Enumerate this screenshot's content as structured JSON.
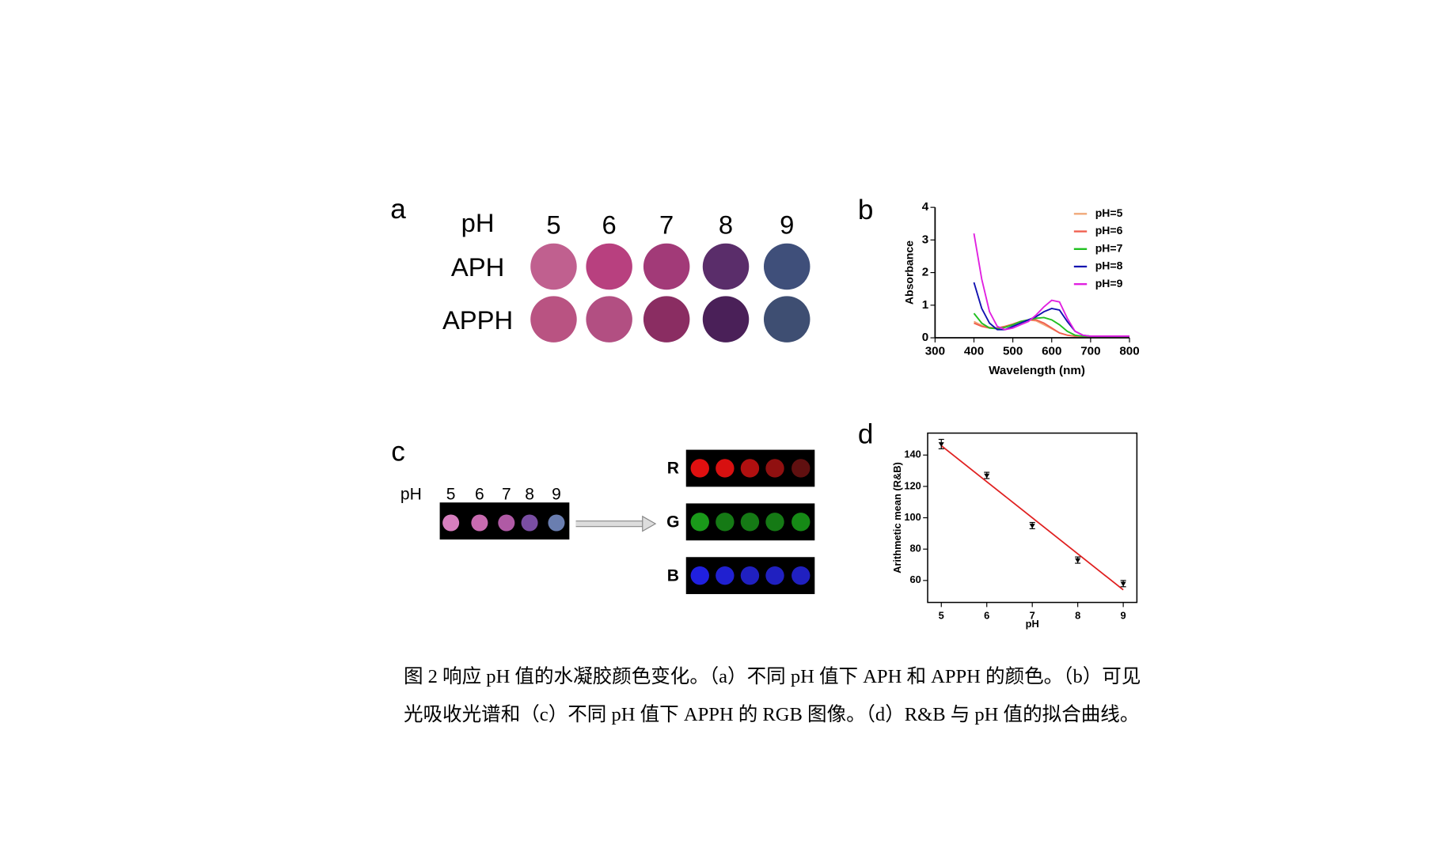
{
  "panel_a": {
    "label": "a",
    "ph_label": "pH",
    "ph_values": [
      "5",
      "6",
      "7",
      "8",
      "9"
    ],
    "rows": [
      {
        "name": "APH",
        "colors": [
          "#c0608f",
          "#b8407f",
          "#a23a78",
          "#5a2d6a",
          "#3f4f7a"
        ]
      },
      {
        "name": "APPH",
        "colors": [
          "#b95382",
          "#b24f82",
          "#8a2d62",
          "#4a2058",
          "#3e4e72"
        ]
      }
    ]
  },
  "panel_c": {
    "label": "c",
    "ph_label": "pH",
    "ph_values": [
      "5",
      "6",
      "7",
      "8",
      "9"
    ],
    "strip_colors": [
      "#d77fbf",
      "#c86bb0",
      "#b05aa5",
      "#7a4ea3",
      "#6a7eb0"
    ],
    "channels": [
      {
        "name": "R",
        "colors": [
          "#e01010",
          "#d81010",
          "#b01010",
          "#901010",
          "#601010"
        ]
      },
      {
        "name": "G",
        "colors": [
          "#1a9a1a",
          "#157a15",
          "#157a15",
          "#157a15",
          "#168a16"
        ]
      },
      {
        "name": "B",
        "colors": [
          "#2020e0",
          "#2020d0",
          "#2020c0",
          "#2020c0",
          "#2020c0"
        ]
      }
    ]
  },
  "chart_data": [
    {
      "type": "line",
      "label": "b",
      "x_label": "Wavelength (nm)",
      "y_label": "Absorbance",
      "x": [
        400,
        420,
        440,
        460,
        480,
        500,
        520,
        540,
        560,
        580,
        600,
        620,
        640,
        660,
        680,
        700,
        720,
        740,
        760,
        780,
        800
      ],
      "xlim": [
        300,
        800
      ],
      "xticks": [
        300,
        400,
        500,
        600,
        700,
        800
      ],
      "ylim": [
        0,
        4
      ],
      "yticks": [
        0,
        1,
        2,
        3,
        4
      ],
      "legend": "upper right",
      "series": [
        {
          "name": "pH=5",
          "color": "#f0a878",
          "values": [
            0.5,
            0.38,
            0.32,
            0.3,
            0.35,
            0.42,
            0.5,
            0.55,
            0.52,
            0.4,
            0.28,
            0.15,
            0.08,
            0.05,
            0.05,
            0.05,
            0.05,
            0.05,
            0.05,
            0.05,
            0.05
          ]
        },
        {
          "name": "pH=6",
          "color": "#f06050",
          "values": [
            0.45,
            0.35,
            0.3,
            0.3,
            0.35,
            0.42,
            0.5,
            0.55,
            0.55,
            0.45,
            0.3,
            0.15,
            0.08,
            0.05,
            0.05,
            0.05,
            0.05,
            0.05,
            0.05,
            0.05,
            0.05
          ]
        },
        {
          "name": "pH=7",
          "color": "#20c020",
          "values": [
            0.75,
            0.45,
            0.3,
            0.28,
            0.32,
            0.4,
            0.5,
            0.55,
            0.6,
            0.62,
            0.55,
            0.4,
            0.2,
            0.08,
            0.05,
            0.05,
            0.05,
            0.05,
            0.05,
            0.05,
            0.05
          ]
        },
        {
          "name": "pH=8",
          "color": "#1010b0",
          "values": [
            1.7,
            0.9,
            0.45,
            0.25,
            0.25,
            0.35,
            0.45,
            0.55,
            0.65,
            0.8,
            0.9,
            0.85,
            0.5,
            0.2,
            0.08,
            0.05,
            0.05,
            0.05,
            0.05,
            0.05,
            0.05
          ]
        },
        {
          "name": "pH=9",
          "color": "#e020e0",
          "values": [
            3.2,
            1.8,
            0.8,
            0.35,
            0.25,
            0.3,
            0.4,
            0.5,
            0.7,
            0.95,
            1.15,
            1.1,
            0.6,
            0.2,
            0.08,
            0.05,
            0.05,
            0.05,
            0.05,
            0.05,
            0.05
          ]
        }
      ]
    },
    {
      "type": "scatter",
      "label": "d",
      "x_label": "pH",
      "y_label": "Arithmetic mean (R&B)",
      "x": [
        5,
        6,
        7,
        8,
        9
      ],
      "values": [
        147,
        127,
        95,
        73,
        58
      ],
      "errors": [
        3,
        2,
        2,
        2,
        2
      ],
      "color": "#000000",
      "fit": {
        "x": [
          5,
          9
        ],
        "y": [
          146,
          54
        ],
        "color": "#e02020"
      },
      "xlim": [
        4.7,
        9.3
      ],
      "xticks": [
        5,
        6,
        7,
        8,
        9
      ],
      "ylim": [
        46,
        154
      ],
      "yticks": [
        60,
        80,
        100,
        120,
        140
      ]
    }
  ],
  "caption": [
    "图 2 响应 pH 值的水凝胶颜色变化。（a）不同 pH 值下 APH 和 APPH 的颜色。（b）可见",
    "光吸收光谱和（c）不同 pH 值下 APPH 的 RGB 图像。（d）R&B 与 pH 值的拟合曲线。"
  ]
}
